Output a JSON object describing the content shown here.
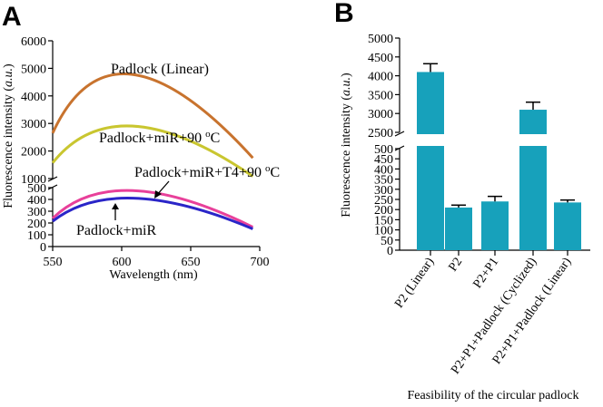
{
  "chart_data": [
    {
      "panel": "A",
      "type": "line",
      "xlabel": "Wavelength (nm)",
      "ylabel_prefix": "Fluorescence intensity (",
      "ylabel_italic": "a.u.",
      "ylabel_suffix": ")",
      "xlim": [
        550,
        700
      ],
      "xticks": [
        "550",
        "600",
        "650",
        "700"
      ],
      "y_upper_range": [
        1000,
        6000
      ],
      "y_upper_ticks": [
        "6000",
        "5000",
        "4000",
        "3000",
        "2000",
        "1000"
      ],
      "y_lower_range": [
        0,
        500
      ],
      "y_lower_ticks": [
        "500",
        "400",
        "300",
        "200",
        "100",
        "0"
      ],
      "axis_break": true,
      "series": [
        {
          "name": "Padlock (Linear)",
          "color": "#c8732e",
          "peak_x": 593,
          "x": [
            550,
            593,
            695
          ],
          "y": [
            2650,
            4780,
            1750
          ]
        },
        {
          "name": "Padlock+miR+90 °C",
          "color": "#c9c630",
          "x": [
            550,
            596,
            695
          ],
          "y": [
            1570,
            2900,
            1080
          ]
        },
        {
          "name": "Padlock+miR+T4+90 °C",
          "color": "#e8409a",
          "x": [
            550,
            595,
            695
          ],
          "y": [
            240,
            475,
            165
          ]
        },
        {
          "name": "Padlock+miR",
          "color": "#2a25c8",
          "x": [
            550,
            596,
            695
          ],
          "y": [
            215,
            410,
            150
          ]
        }
      ],
      "labels": {
        "linear": "Padlock (Linear)",
        "heat": "Padlock+miR+90",
        "t4": "Padlock+miR+T4+90",
        "mir": "Padlock+miR",
        "degree_o": "o",
        "degree_c": "C"
      }
    },
    {
      "panel": "B",
      "type": "bar",
      "xlabel": "Feasibility of the circular padlock",
      "ylabel_prefix": "Fluorescence intensity (",
      "ylabel_italic": "a.u.",
      "ylabel_suffix": ")",
      "categories": [
        "P2 (Linear)",
        "P2",
        "P2+P1",
        "P2+P1+Padlock (Cyclized)",
        "P2+P1+Padlock (Linear)"
      ],
      "values": [
        4100,
        210,
        240,
        3100,
        235
      ],
      "errors": [
        220,
        12,
        25,
        200,
        12
      ],
      "bar_color": "#17a1bb",
      "axis_break": true,
      "y_upper_range": [
        2500,
        5000
      ],
      "y_upper_ticks": [
        "5000",
        "4500",
        "4000",
        "3500",
        "3000",
        "2500"
      ],
      "y_lower_range": [
        0,
        500
      ],
      "y_lower_ticks": [
        "500",
        "450",
        "400",
        "350",
        "300",
        "250",
        "200",
        "150",
        "100",
        "50",
        "0"
      ]
    }
  ]
}
